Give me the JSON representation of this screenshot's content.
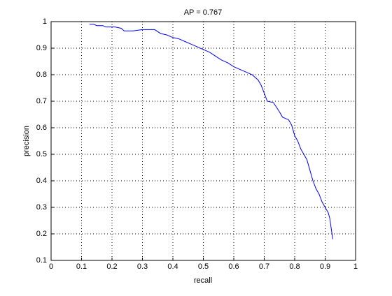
{
  "chart_data": {
    "type": "line",
    "title": "AP = 0.767",
    "xlabel": "recall",
    "ylabel": "precision",
    "x": [
      0.126,
      0.14,
      0.15,
      0.17,
      0.18,
      0.21,
      0.23,
      0.24,
      0.27,
      0.3,
      0.34,
      0.36,
      0.38,
      0.4,
      0.42,
      0.44,
      0.46,
      0.48,
      0.5,
      0.52,
      0.54,
      0.56,
      0.58,
      0.6,
      0.62,
      0.64,
      0.66,
      0.68,
      0.69,
      0.7,
      0.71,
      0.73,
      0.75,
      0.76,
      0.78,
      0.79,
      0.8,
      0.81,
      0.82,
      0.83,
      0.84,
      0.85,
      0.86,
      0.87,
      0.88,
      0.89,
      0.9,
      0.91,
      0.915,
      0.92,
      0.925
    ],
    "values": [
      0.99,
      0.99,
      0.985,
      0.985,
      0.98,
      0.98,
      0.975,
      0.965,
      0.965,
      0.97,
      0.97,
      0.955,
      0.95,
      0.94,
      0.935,
      0.925,
      0.915,
      0.905,
      0.895,
      0.885,
      0.87,
      0.855,
      0.845,
      0.83,
      0.82,
      0.81,
      0.8,
      0.78,
      0.76,
      0.73,
      0.7,
      0.695,
      0.66,
      0.64,
      0.63,
      0.61,
      0.57,
      0.55,
      0.52,
      0.5,
      0.48,
      0.44,
      0.4,
      0.37,
      0.35,
      0.32,
      0.3,
      0.28,
      0.26,
      0.22,
      0.18
    ],
    "color": "#0000ff",
    "xlim": [
      0,
      1
    ],
    "xticks": [
      0,
      0.1,
      0.2,
      0.3,
      0.4,
      0.5,
      0.6,
      0.7,
      0.8,
      0.9,
      1
    ],
    "ylim": [
      0.1,
      1
    ],
    "yticks": [
      0.1,
      0.2,
      0.3,
      0.4,
      0.5,
      0.6,
      0.7,
      0.8,
      0.9,
      1
    ],
    "grid": true
  }
}
